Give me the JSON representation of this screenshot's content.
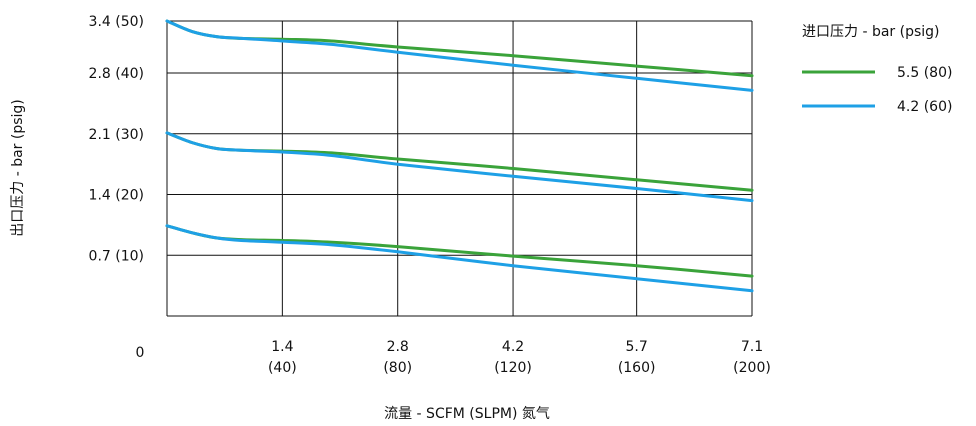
{
  "chart_data": {
    "type": "line",
    "xlabel": "流量 - SCFM (SLPM) 氮气",
    "ylabel": "出口压力 - bar (psig)",
    "x_ticks": [
      {
        "value": 1.4,
        "l1": "1.4",
        "l2": "(40)"
      },
      {
        "value": 2.8,
        "l1": "2.8",
        "l2": "(80)"
      },
      {
        "value": 4.2,
        "l1": "4.2",
        "l2": "(120)"
      },
      {
        "value": 5.7,
        "l1": "5.7",
        "l2": "(160)"
      },
      {
        "value": 7.1,
        "l1": "7.1",
        "l2": "(200)"
      }
    ],
    "y_ticks": [
      {
        "value": 0.7,
        "label": "0.7 (10)"
      },
      {
        "value": 1.4,
        "label": "1.4 (20)"
      },
      {
        "value": 2.1,
        "label": "2.1 (30)"
      },
      {
        "value": 2.8,
        "label": "2.8 (40)"
      },
      {
        "value": 3.4,
        "label": "3.4 (50)"
      }
    ],
    "origin_label": "0",
    "xlim": [
      0,
      7.1
    ],
    "ylim": [
      0,
      3.4
    ],
    "grid": true,
    "legend": {
      "title": "进口压力 - bar (psig)",
      "placement": "right"
    },
    "series": [
      {
        "name": "5.5 (80)",
        "color": "#3aa33a",
        "curves": [
          {
            "x": [
              0,
              0.3,
              0.6,
              0.9,
              1.4,
              2.0,
              2.8,
              4.2,
              5.7,
              7.1
            ],
            "y": [
              3.4,
              3.28,
              3.22,
              3.2,
              3.19,
              3.17,
              3.1,
              3.0,
              2.88,
              2.77
            ]
          },
          {
            "x": [
              0,
              0.3,
              0.6,
              0.9,
              1.4,
              2.0,
              2.8,
              4.2,
              5.7,
              7.1
            ],
            "y": [
              2.11,
              2.0,
              1.93,
              1.91,
              1.9,
              1.88,
              1.81,
              1.7,
              1.57,
              1.45
            ]
          },
          {
            "x": [
              0,
              0.3,
              0.6,
              0.9,
              1.4,
              2.0,
              2.8,
              4.2,
              5.7,
              7.1
            ],
            "y": [
              1.04,
              0.96,
              0.9,
              0.88,
              0.87,
              0.85,
              0.8,
              0.69,
              0.58,
              0.46
            ]
          }
        ]
      },
      {
        "name": "4.2 (60)",
        "color": "#1ea0e6",
        "curves": [
          {
            "x": [
              0,
              0.3,
              0.6,
              0.9,
              1.4,
              2.0,
              2.8,
              4.2,
              5.7,
              7.1
            ],
            "y": [
              3.4,
              3.28,
              3.22,
              3.2,
              3.17,
              3.13,
              3.04,
              2.89,
              2.74,
              2.6
            ]
          },
          {
            "x": [
              0,
              0.3,
              0.6,
              0.9,
              1.4,
              2.0,
              2.8,
              4.2,
              5.7,
              7.1
            ],
            "y": [
              2.11,
              2.0,
              1.93,
              1.91,
              1.89,
              1.85,
              1.75,
              1.61,
              1.47,
              1.33
            ]
          },
          {
            "x": [
              0,
              0.3,
              0.6,
              0.9,
              1.4,
              2.0,
              2.8,
              4.2,
              5.7,
              7.1
            ],
            "y": [
              1.04,
              0.96,
              0.9,
              0.87,
              0.85,
              0.82,
              0.74,
              0.58,
              0.43,
              0.29
            ]
          }
        ]
      }
    ]
  }
}
